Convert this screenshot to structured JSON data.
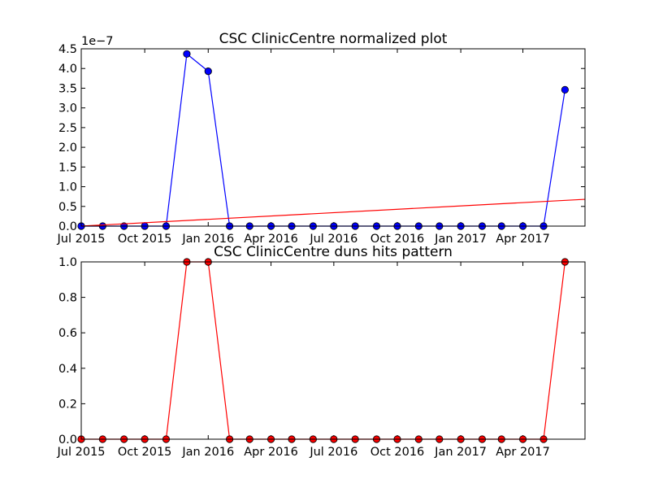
{
  "chart_data": [
    {
      "type": "line",
      "title": "CSC ClinicCentre normalized plot",
      "xlabel": "",
      "ylabel": "",
      "x_tick_labels": [
        "Jul 2015",
        "Oct 2015",
        "Jan 2016",
        "Apr 2016",
        "Jul 2016",
        "Oct 2016",
        "Jan 2017",
        "Apr 2017"
      ],
      "y_tick_labels": [
        "0.0",
        "0.5",
        "1.0",
        "1.5",
        "2.0",
        "2.5",
        "3.0",
        "3.5",
        "4.0",
        "4.5"
      ],
      "y_offset_label": "1e−7",
      "xlim": [
        "2015-07-01",
        "2017-06-30"
      ],
      "ylim": [
        0,
        4.5e-07
      ],
      "grid": false,
      "series": [
        {
          "color": "#0000ff",
          "marker": "circle",
          "x": [
            "2015-07-01",
            "2015-08-01",
            "2015-09-01",
            "2015-10-01",
            "2015-11-01",
            "2015-12-01",
            "2016-01-01",
            "2016-02-01",
            "2016-03-01",
            "2016-04-01",
            "2016-05-01",
            "2016-06-01",
            "2016-07-01",
            "2016-08-01",
            "2016-09-01",
            "2016-10-01",
            "2016-11-01",
            "2016-12-01",
            "2017-01-01",
            "2017-02-01",
            "2017-03-01",
            "2017-04-01",
            "2017-05-01",
            "2017-06-01"
          ],
          "values": [
            0,
            0,
            0,
            0,
            0,
            4.37e-07,
            3.93e-07,
            0,
            0,
            0,
            0,
            0,
            0,
            0,
            0,
            0,
            0,
            0,
            0,
            0,
            0,
            0,
            0,
            3.46e-07
          ]
        },
        {
          "color": "#ff0000",
          "marker": "none",
          "x": [
            "2015-07-01",
            "2017-06-30"
          ],
          "values": [
            0,
            6.8e-08
          ]
        }
      ]
    },
    {
      "type": "line",
      "title": "CSC ClinicCentre duns hits pattern",
      "xlabel": "",
      "ylabel": "",
      "x_tick_labels": [
        "Jul 2015",
        "Oct 2015",
        "Jan 2016",
        "Apr 2016",
        "Jul 2016",
        "Oct 2016",
        "Jan 2017",
        "Apr 2017"
      ],
      "y_tick_labels": [
        "0.0",
        "0.2",
        "0.4",
        "0.6",
        "0.8",
        "1.0"
      ],
      "xlim": [
        "2015-07-01",
        "2017-06-30"
      ],
      "ylim": [
        0,
        1
      ],
      "grid": false,
      "series": [
        {
          "color": "#ff0000",
          "marker": "circle",
          "x": [
            "2015-07-01",
            "2015-08-01",
            "2015-09-01",
            "2015-10-01",
            "2015-11-01",
            "2015-12-01",
            "2016-01-01",
            "2016-02-01",
            "2016-03-01",
            "2016-04-01",
            "2016-05-01",
            "2016-06-01",
            "2016-07-01",
            "2016-08-01",
            "2016-09-01",
            "2016-10-01",
            "2016-11-01",
            "2016-12-01",
            "2017-01-01",
            "2017-02-01",
            "2017-03-01",
            "2017-04-01",
            "2017-05-01",
            "2017-06-01"
          ],
          "values": [
            0,
            0,
            0,
            0,
            0,
            1,
            1,
            0,
            0,
            0,
            0,
            0,
            0,
            0,
            0,
            0,
            0,
            0,
            0,
            0,
            0,
            0,
            0,
            1
          ]
        }
      ]
    }
  ]
}
